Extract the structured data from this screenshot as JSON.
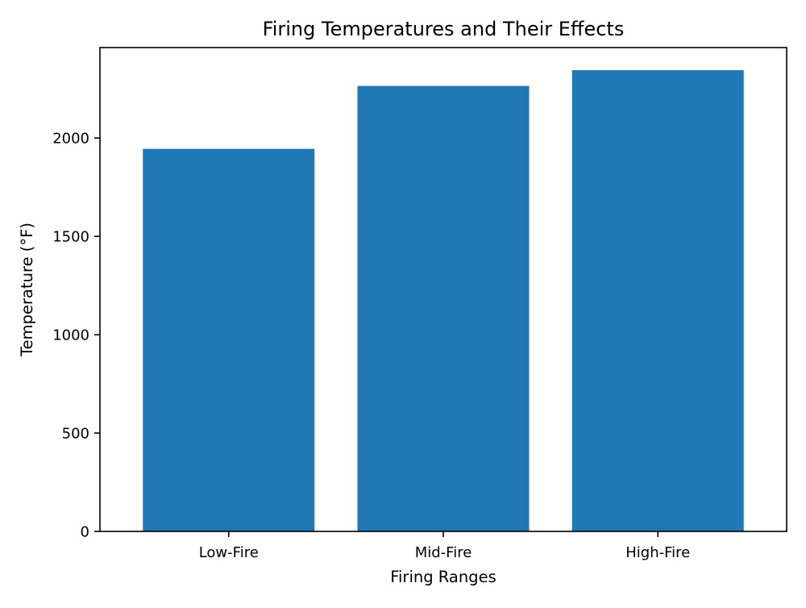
{
  "chart_data": {
    "type": "bar",
    "title": "Firing Temperatures and Their Effects",
    "xlabel": "Firing Ranges",
    "ylabel": "Temperature (°F)",
    "categories": [
      "Low-Fire",
      "Mid-Fire",
      "High-Fire"
    ],
    "values": [
      1945,
      2265,
      2345
    ],
    "ylim": [
      0,
      2460
    ],
    "yticks": [
      0,
      500,
      1000,
      1500,
      2000
    ],
    "ytick_labels": [
      "0",
      "500",
      "1000",
      "1500",
      "2000"
    ],
    "grid": false,
    "bar_color": "#1f77b4"
  }
}
